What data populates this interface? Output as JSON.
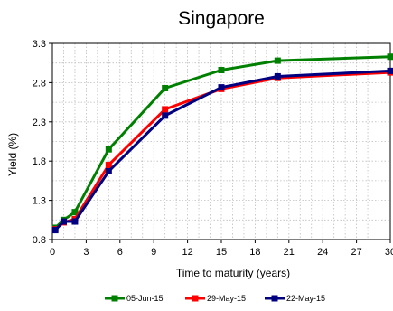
{
  "chart_data": {
    "type": "line",
    "title": "Singapore",
    "xlabel": "Time to maturity  (years)",
    "ylabel": "Yield  (%)",
    "xlim": [
      0,
      30
    ],
    "ylim": [
      0.8,
      3.3
    ],
    "x_ticks": [
      "0",
      "3",
      "6",
      "9",
      "12",
      "15",
      "18",
      "21",
      "24",
      "27",
      "30"
    ],
    "y_ticks": [
      "0.8",
      "1.3",
      "1.8",
      "2.3",
      "2.8",
      "3.3"
    ],
    "grid": true,
    "legend_position": "bottom",
    "series": [
      {
        "name": "05-Jun-15",
        "color": "#008000",
        "x": [
          0.25,
          1,
          2,
          5,
          10,
          15,
          20,
          30
        ],
        "y": [
          0.95,
          1.05,
          1.15,
          1.95,
          2.73,
          2.96,
          3.08,
          3.13
        ]
      },
      {
        "name": "29-May-15",
        "color": "#ff0000",
        "x": [
          0.25,
          1,
          2,
          5,
          10,
          15,
          20,
          30
        ],
        "y": [
          0.93,
          1.02,
          1.06,
          1.75,
          2.46,
          2.72,
          2.86,
          2.93
        ]
      },
      {
        "name": "22-May-15",
        "color": "#000080",
        "x": [
          0.25,
          1,
          2,
          5,
          10,
          15,
          20,
          30
        ],
        "y": [
          0.92,
          1.03,
          1.03,
          1.67,
          2.38,
          2.74,
          2.88,
          2.95
        ]
      }
    ]
  }
}
